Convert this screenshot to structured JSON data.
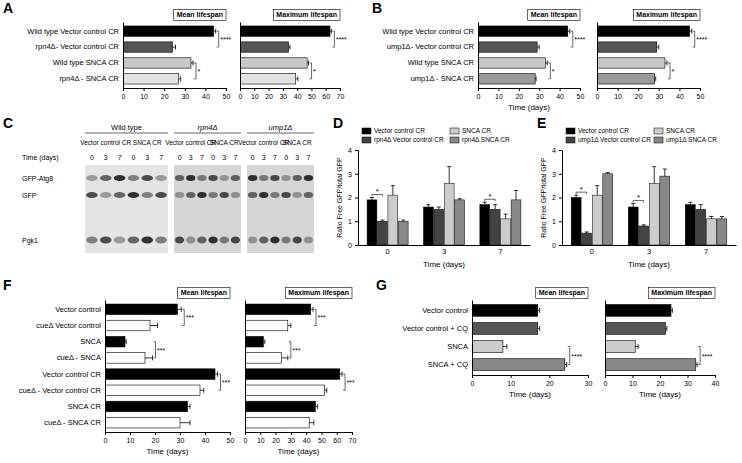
{
  "chart_data": [
    {
      "type": "bar",
      "orientation": "horizontal",
      "panel": "A",
      "title": "Mean lifespan",
      "categories": [
        "Wild type Vector control CR",
        "rpn4Δ- Vector control CR",
        "Wild type SNCA CR",
        "rpn4Δ - SNCA CR"
      ],
      "values": [
        44,
        24,
        33,
        27
      ],
      "errors": [
        1,
        1.5,
        1,
        1
      ],
      "colors": [
        "#000000",
        "#555555",
        "#c8c8c8",
        "#e2e2e2"
      ],
      "xlim": [
        0,
        50
      ],
      "xticks": [
        0,
        10,
        20,
        30,
        40,
        50
      ],
      "annotations": [
        "****",
        "*"
      ]
    },
    {
      "type": "bar",
      "orientation": "horizontal",
      "title": "Maximum lifespan",
      "tick_labels": "x",
      "categories": [
        "Wild type Vector control CR",
        "rpn4Δ- Vector control CR",
        "Wild type SNCA CR",
        "rpn4Δ - SNCA CR"
      ],
      "values": [
        63,
        34,
        47,
        39
      ],
      "errors": [
        1,
        1,
        1,
        1.5
      ],
      "colors": [
        "#000000",
        "#555555",
        "#c8c8c8",
        "#e2e2e2"
      ],
      "xlim": [
        0,
        70
      ],
      "xticks": [
        0,
        10,
        20,
        30,
        40,
        50,
        60,
        70
      ],
      "annotations": [
        "****",
        "*"
      ]
    },
    {
      "type": "bar",
      "orientation": "horizontal",
      "panel": "B",
      "title": "Mean lifespan",
      "xlabel": "Time (days)",
      "categories": [
        "Wild type Vector control CR",
        "ump1Δ- Vector control CR",
        "Wild type SNCA CR",
        "ump1Δ - SNCA CR"
      ],
      "values": [
        44,
        29,
        33,
        28
      ],
      "errors": [
        1,
        1,
        1,
        0.5
      ],
      "colors": [
        "#000000",
        "#555555",
        "#c8c8c8",
        "#9a9a9a"
      ],
      "xlim": [
        0,
        50
      ],
      "xticks": [
        0,
        10,
        20,
        30,
        40,
        50
      ],
      "annotations": [
        "****",
        "*"
      ]
    },
    {
      "type": "bar",
      "orientation": "horizontal",
      "title": "Maximum lifespan",
      "tick_labels": "x",
      "categories": [
        "Wild type Vector control CR",
        "ump1Δ- Vector control CR",
        "Wild type SNCA CR",
        "ump1Δ - SNCA CR"
      ],
      "values": [
        45,
        29,
        33,
        28
      ],
      "errors": [
        1,
        1,
        1,
        0.5
      ],
      "colors": [
        "#000000",
        "#555555",
        "#c8c8c8",
        "#9a9a9a"
      ],
      "xlim": [
        0,
        50
      ],
      "xticks": [
        0,
        10,
        20,
        30,
        40,
        50
      ],
      "annotations": [
        "****",
        "*"
      ]
    },
    {
      "type": "blot",
      "panel": "C",
      "groups": [
        {
          "label": "Wild type",
          "conditions": [
            "Vector control CR",
            "SNCA CR"
          ]
        },
        {
          "label": "rpn4Δ",
          "conditions": [
            "Vector control CR",
            "SNCA CR"
          ]
        },
        {
          "label": "ump1Δ",
          "conditions": [
            "Vector control CR",
            "SNCA CR"
          ]
        }
      ],
      "time_label": "Time (days)",
      "times": [
        0,
        3,
        7
      ],
      "rows": [
        "GFP-Atg8",
        "GFP",
        "Pgk1"
      ]
    },
    {
      "type": "bar",
      "panel": "D",
      "categories": [
        0,
        3,
        7
      ],
      "xlabel": "Time (days)",
      "ylabel": "Ratio Free GFP/total GFP",
      "ylim": [
        0,
        4
      ],
      "yticks": [
        0,
        1,
        2,
        3,
        4
      ],
      "legend": "top",
      "series": [
        {
          "name": "Vector control CR",
          "color": "#000000",
          "values": [
            1.9,
            1.6,
            1.7
          ],
          "errors": [
            0.1,
            0.1,
            0.1
          ]
        },
        {
          "name": "rpn4Δ Vector control CR",
          "color": "#444444",
          "values": [
            1.0,
            1.5,
            1.5
          ],
          "errors": [
            0.05,
            0.1,
            0.2
          ]
        },
        {
          "name": "SNCA CR",
          "color": "#cccccc",
          "values": [
            2.1,
            2.6,
            1.1
          ],
          "errors": [
            0.4,
            0.7,
            0.2
          ]
        },
        {
          "name": "rpn4Δ SNCA CR",
          "color": "#888888",
          "values": [
            1.0,
            1.9,
            1.9
          ],
          "errors": [
            0.05,
            0.05,
            0.4
          ]
        }
      ],
      "annotations": [
        "*",
        null,
        "*"
      ]
    },
    {
      "type": "bar",
      "panel": "E",
      "categories": [
        0,
        3,
        7
      ],
      "xlabel": "Time (days)",
      "ylabel": "Ratio Free GFP/total GFP",
      "ylim": [
        0,
        4
      ],
      "yticks": [
        0,
        1,
        2,
        3,
        4
      ],
      "legend": "top",
      "series": [
        {
          "name": "Vector control CR",
          "color": "#000000",
          "values": [
            2.0,
            1.6,
            1.7
          ],
          "errors": [
            0.1,
            0.15,
            0.1
          ]
        },
        {
          "name": "ump1Δ Vector control CR",
          "color": "#444444",
          "values": [
            0.5,
            0.8,
            1.5
          ],
          "errors": [
            0.05,
            0.05,
            0.2
          ]
        },
        {
          "name": "SNCA CR",
          "color": "#cccccc",
          "values": [
            2.1,
            2.6,
            1.1
          ],
          "errors": [
            0.4,
            0.7,
            0.1
          ]
        },
        {
          "name": "ump1Δ SNCA CR",
          "color": "#888888",
          "values": [
            3.0,
            2.9,
            1.1
          ],
          "errors": [
            0.05,
            0.3,
            0.1
          ]
        }
      ],
      "annotations": [
        "*",
        "*",
        null
      ]
    },
    {
      "type": "bar",
      "orientation": "horizontal",
      "panel": "F",
      "title": "Mean lifespan",
      "xlabel": "Time (days)",
      "categories": [
        "Vector control",
        "cueΔ Vector control",
        "SNCA",
        "cueΔ - SNCA",
        "Vector control CR",
        "cueΔ - Vector control CR",
        "SNCA CR",
        "cueΔ - SNCA CR"
      ],
      "values": [
        29,
        18,
        8,
        16,
        44,
        38,
        33,
        30
      ],
      "errors": [
        1.5,
        3,
        0.5,
        3,
        1,
        1.5,
        1,
        4
      ],
      "colors": [
        "#000000",
        "#ffffff",
        "#000000",
        "#ffffff",
        "#000000",
        "#ffffff",
        "#000000",
        "#ffffff"
      ],
      "xlim": [
        0,
        50
      ],
      "xticks": [
        0,
        10,
        20,
        30,
        40,
        50
      ],
      "annotations": [
        "***",
        "***",
        "***",
        null
      ]
    },
    {
      "type": "bar",
      "orientation": "horizontal",
      "title": "Maximum lifespan",
      "xlabel": "Time (days)",
      "tick_labels": "x",
      "categories": [
        "Vector control",
        "cueΔ Vector control",
        "SNCA",
        "cueΔ - SNCA",
        "Vector control CR",
        "cueΔ - Vector control CR",
        "SNCA CR",
        "cueΔ - SNCA CR"
      ],
      "values": [
        43,
        28,
        12,
        24,
        62,
        52,
        46,
        42
      ],
      "errors": [
        1.5,
        2,
        1,
        4,
        1.5,
        1.5,
        1.5,
        3
      ],
      "colors": [
        "#000000",
        "#ffffff",
        "#000000",
        "#ffffff",
        "#000000",
        "#ffffff",
        "#000000",
        "#ffffff"
      ],
      "xlim": [
        0,
        70
      ],
      "xticks": [
        0,
        10,
        20,
        30,
        40,
        50,
        60,
        70
      ],
      "annotations": [
        "***",
        "***",
        "***",
        null
      ]
    },
    {
      "type": "bar",
      "orientation": "horizontal",
      "panel": "G",
      "title": "Mean lifespan",
      "xlabel": "Time (days)",
      "categories": [
        "Vector control",
        "Vector control + CQ",
        "SNCA",
        "SNCA + CQ"
      ],
      "values": [
        17,
        17,
        8,
        24
      ],
      "errors": [
        0.5,
        0.5,
        1,
        0.5
      ],
      "colors": [
        "#000000",
        "#555555",
        "#cccccc",
        "#888888"
      ],
      "xlim": [
        0,
        30
      ],
      "xticks": [
        0,
        10,
        20,
        30
      ],
      "annotations": [
        null,
        "****"
      ]
    },
    {
      "type": "bar",
      "orientation": "horizontal",
      "title": "Maximum lifespan",
      "xlabel": "Time (days)",
      "tick_labels": "x",
      "categories": [
        "Vector control",
        "Vector control + CQ",
        "SNCA",
        "SNCA + CQ"
      ],
      "values": [
        24,
        22,
        11,
        33
      ],
      "errors": [
        0.5,
        0.5,
        1,
        0.5
      ],
      "colors": [
        "#000000",
        "#555555",
        "#cccccc",
        "#888888"
      ],
      "xlim": [
        0,
        40
      ],
      "xticks": [
        0,
        10,
        20,
        30,
        40
      ],
      "annotations": [
        null,
        "****"
      ]
    }
  ]
}
